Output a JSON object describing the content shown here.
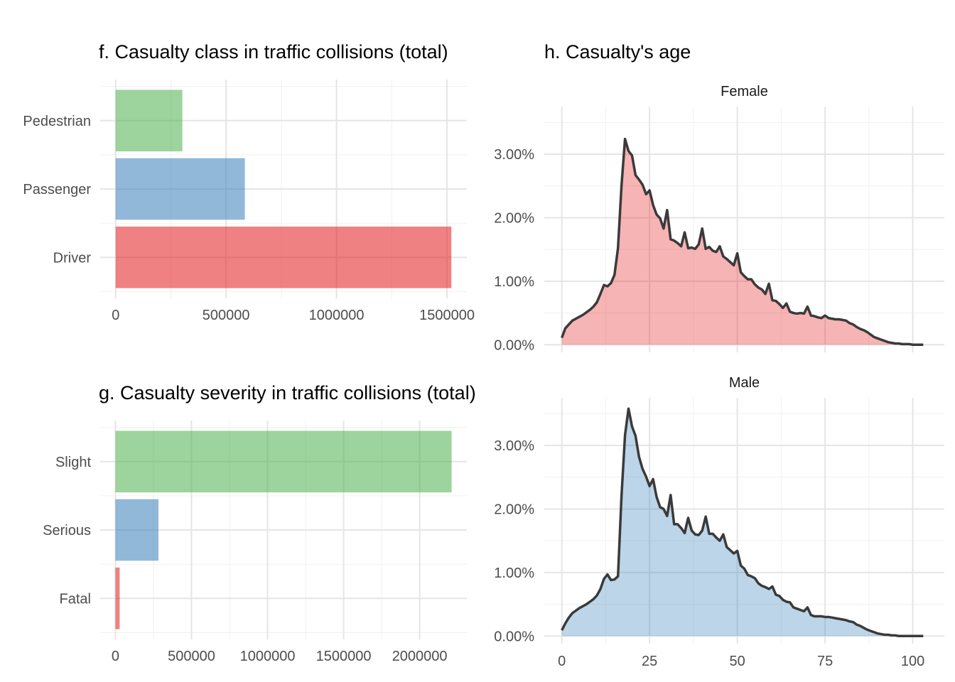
{
  "colors": {
    "red": "#E41A1C",
    "blue": "#377EB8",
    "green": "#4DAF4A",
    "line": "#3a3a3a"
  },
  "chart_data": [
    {
      "id": "f",
      "type": "bar",
      "orientation": "horizontal",
      "title": "f. Casualty class in traffic collisions (total)",
      "xlabel": "",
      "ylabel": "",
      "categories": [
        "Driver",
        "Passenger",
        "Pedestrian"
      ],
      "values": [
        1520000,
        585000,
        302000
      ],
      "bar_colors": [
        "#E41A1C",
        "#377EB8",
        "#4DAF4A"
      ],
      "xlim": [
        -70000,
        1590000
      ],
      "xticks": [
        0,
        500000,
        1000000,
        1500000
      ],
      "xtick_labels": [
        "0",
        "500000",
        "1000000",
        "1500000"
      ],
      "grid": true
    },
    {
      "id": "g",
      "type": "bar",
      "orientation": "horizontal",
      "title": "g. Casualty severity in traffic collisions (total)",
      "xlabel": "",
      "ylabel": "",
      "categories": [
        "Fatal",
        "Serious",
        "Slight"
      ],
      "values": [
        28000,
        283000,
        2210000
      ],
      "bar_colors": [
        "#E41A1C",
        "#377EB8",
        "#4DAF4A"
      ],
      "xlim": [
        -100000,
        2310000
      ],
      "xticks": [
        0,
        500000,
        1000000,
        1500000,
        2000000
      ],
      "xtick_labels": [
        "0",
        "500000",
        "1000000",
        "1500000",
        "2000000"
      ],
      "grid": true
    },
    {
      "id": "h",
      "type": "area",
      "title": "h. Casualty's age",
      "xlabel": "",
      "ylabel": "",
      "xlim": [
        -5,
        109
      ],
      "ylim": [
        -0.0012,
        0.0375
      ],
      "xticks": [
        0,
        25,
        50,
        75,
        100
      ],
      "xtick_labels": [
        "0",
        "25",
        "50",
        "75",
        "100"
      ],
      "yticks": [
        0,
        0.01,
        0.02,
        0.03
      ],
      "ytick_labels": [
        "0.00%",
        "1.00%",
        "2.00%",
        "3.00%"
      ],
      "grid": true,
      "series": [
        {
          "name": "Female",
          "fill": "#E41A1C",
          "x": [
            0,
            1,
            2,
            3,
            4,
            5,
            6,
            7,
            8,
            9,
            10,
            11,
            12,
            13,
            14,
            15,
            16,
            17,
            18,
            19,
            20,
            21,
            22,
            23,
            24,
            25,
            26,
            27,
            28,
            29,
            30,
            31,
            32,
            33,
            34,
            35,
            36,
            37,
            38,
            39,
            40,
            41,
            42,
            43,
            44,
            45,
            46,
            47,
            48,
            49,
            50,
            51,
            52,
            53,
            54,
            55,
            56,
            57,
            58,
            59,
            60,
            61,
            62,
            63,
            64,
            65,
            66,
            67,
            68,
            69,
            70,
            71,
            72,
            73,
            74,
            75,
            76,
            77,
            78,
            79,
            80,
            81,
            82,
            83,
            84,
            85,
            86,
            87,
            88,
            89,
            90,
            91,
            92,
            93,
            94,
            95,
            96,
            97,
            98,
            99,
            100,
            101,
            102,
            103
          ],
          "values": [
            0.0011,
            0.0026,
            0.0032,
            0.0038,
            0.0041,
            0.0044,
            0.0047,
            0.0051,
            0.0055,
            0.006,
            0.0067,
            0.008,
            0.0094,
            0.0092,
            0.0097,
            0.011,
            0.0152,
            0.025,
            0.0324,
            0.0305,
            0.0298,
            0.0267,
            0.026,
            0.0252,
            0.0237,
            0.0243,
            0.022,
            0.0205,
            0.0199,
            0.0183,
            0.0212,
            0.0166,
            0.0164,
            0.016,
            0.0155,
            0.0177,
            0.0152,
            0.0153,
            0.0151,
            0.0158,
            0.0183,
            0.0151,
            0.0154,
            0.0148,
            0.0146,
            0.0155,
            0.0139,
            0.0135,
            0.013,
            0.0125,
            0.0144,
            0.0114,
            0.0108,
            0.0103,
            0.0103,
            0.0095,
            0.009,
            0.0087,
            0.008,
            0.0096,
            0.007,
            0.0069,
            0.0064,
            0.0058,
            0.0065,
            0.0052,
            0.005,
            0.0049,
            0.005,
            0.0049,
            0.006,
            0.0046,
            0.0045,
            0.0043,
            0.0042,
            0.0046,
            0.0042,
            0.0041,
            0.004,
            0.004,
            0.0039,
            0.0038,
            0.0034,
            0.0032,
            0.0028,
            0.0025,
            0.0023,
            0.002,
            0.0016,
            0.0012,
            0.001,
            0.0008,
            0.0006,
            0.0004,
            0.0003,
            0.0002,
            0.0002,
            0.0001,
            0.0001,
            0.0001,
            0.0,
            0.0,
            0.0,
            0.0
          ]
        },
        {
          "name": "Male",
          "fill": "#377EB8",
          "x": [
            0,
            1,
            2,
            3,
            4,
            5,
            6,
            7,
            8,
            9,
            10,
            11,
            12,
            13,
            14,
            15,
            16,
            17,
            18,
            19,
            20,
            21,
            22,
            23,
            24,
            25,
            26,
            27,
            28,
            29,
            30,
            31,
            32,
            33,
            34,
            35,
            36,
            37,
            38,
            39,
            40,
            41,
            42,
            43,
            44,
            45,
            46,
            47,
            48,
            49,
            50,
            51,
            52,
            53,
            54,
            55,
            56,
            57,
            58,
            59,
            60,
            61,
            62,
            63,
            64,
            65,
            66,
            67,
            68,
            69,
            70,
            71,
            72,
            73,
            74,
            75,
            76,
            77,
            78,
            79,
            80,
            81,
            82,
            83,
            84,
            85,
            86,
            87,
            88,
            89,
            90,
            91,
            92,
            93,
            94,
            95,
            96,
            97,
            98,
            99,
            100,
            101,
            102,
            103
          ],
          "values": [
            0.0009,
            0.002,
            0.0029,
            0.0036,
            0.004,
            0.0044,
            0.0047,
            0.005,
            0.0054,
            0.0058,
            0.0064,
            0.0074,
            0.009,
            0.0097,
            0.0088,
            0.0089,
            0.0094,
            0.022,
            0.0316,
            0.0358,
            0.033,
            0.0315,
            0.0282,
            0.0263,
            0.0251,
            0.0236,
            0.0247,
            0.0219,
            0.0203,
            0.02,
            0.0189,
            0.0222,
            0.0176,
            0.0176,
            0.017,
            0.0162,
            0.0186,
            0.0166,
            0.016,
            0.0159,
            0.0166,
            0.0188,
            0.0161,
            0.0161,
            0.0155,
            0.015,
            0.016,
            0.014,
            0.0135,
            0.013,
            0.0134,
            0.0111,
            0.0106,
            0.0096,
            0.0094,
            0.0091,
            0.0083,
            0.0079,
            0.0077,
            0.0074,
            0.0078,
            0.0065,
            0.0063,
            0.0057,
            0.0054,
            0.0053,
            0.0045,
            0.0043,
            0.0041,
            0.0039,
            0.0045,
            0.0033,
            0.0031,
            0.0031,
            0.0031,
            0.003,
            0.003,
            0.0029,
            0.0028,
            0.0027,
            0.0026,
            0.0025,
            0.0023,
            0.0022,
            0.0018,
            0.0016,
            0.0013,
            0.001,
            0.0008,
            0.0006,
            0.0004,
            0.0003,
            0.0002,
            0.0002,
            0.0001,
            0.0001,
            0.0,
            0.0,
            0.0,
            0.0,
            0.0,
            0.0,
            0.0,
            0.0
          ]
        }
      ]
    }
  ]
}
